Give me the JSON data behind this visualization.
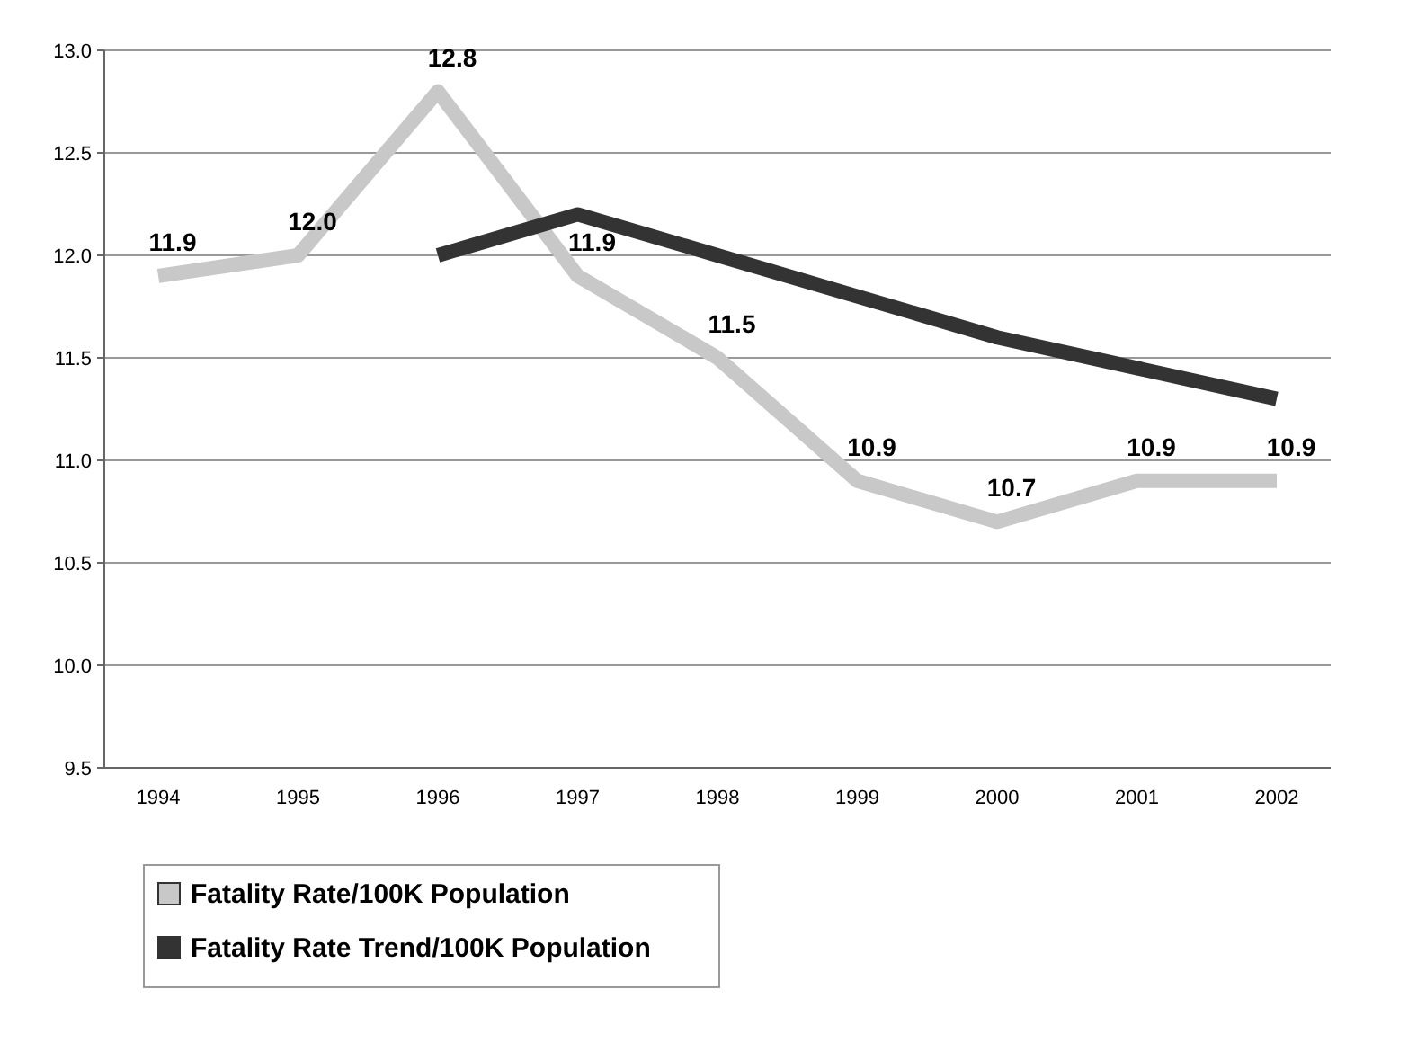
{
  "chart_data": {
    "type": "line",
    "categories": [
      "1994",
      "1995",
      "1996",
      "1997",
      "1998",
      "1999",
      "2000",
      "2001",
      "2002"
    ],
    "series": [
      {
        "name": "Fatality Rate/100K Population",
        "color": "#c8c8c8",
        "values": [
          11.9,
          12.0,
          12.8,
          11.9,
          11.5,
          10.9,
          10.7,
          10.9,
          10.9
        ],
        "value_labels": [
          "11.9",
          "12.0",
          "12.8",
          "11.9",
          "11.5",
          "10.9",
          "10.7",
          "10.9",
          "10.9"
        ]
      },
      {
        "name": "Fatality Rate Trend/100K Population",
        "color": "#333333",
        "values": [
          null,
          null,
          12.0,
          12.2,
          12.0,
          11.8,
          11.6,
          11.45,
          11.3
        ]
      }
    ],
    "ylim": [
      9.5,
      13
    ],
    "yticks": [
      {
        "value": 9.5,
        "label": "9.5"
      },
      {
        "value": 10,
        "label": "10.0"
      },
      {
        "value": 10.5,
        "label": "10.5"
      },
      {
        "value": 11,
        "label": "11.0"
      },
      {
        "value": 11.5,
        "label": "11.5"
      },
      {
        "value": 12,
        "label": "12.0"
      },
      {
        "value": 12.5,
        "label": "12.5"
      },
      {
        "value": 13,
        "label": "13.0"
      }
    ],
    "grid": "y",
    "legend": "bottom left",
    "marker": "none",
    "line_style": "solid"
  }
}
